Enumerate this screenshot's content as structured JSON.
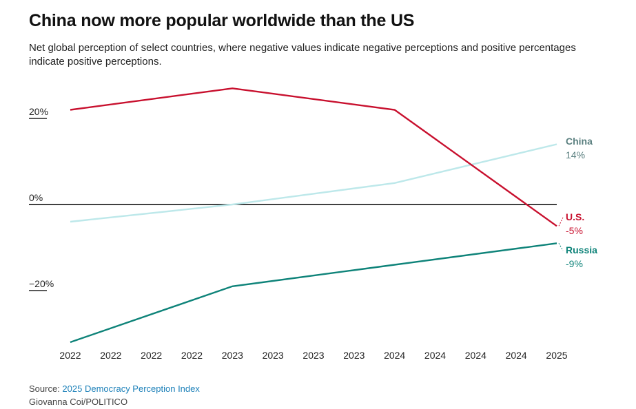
{
  "header": {
    "title": "China now more popular worldwide than the US",
    "subtitle": "Net global perception of select countries, where negative values indicate negative perceptions and positive percentages indicate positive perceptions."
  },
  "footer": {
    "source_prefix": "Source: ",
    "source_link": "2025 Democracy Perception Index",
    "credit": "Giovanna Coi/POLITICO"
  },
  "colors": {
    "us": "#c8102e",
    "china": "#bde8ea",
    "china_label": "#5a7f7f",
    "russia": "#0e8379",
    "zero_line": "#000000"
  },
  "chart_data": {
    "type": "line",
    "title": "China now more popular worldwide than the US",
    "xlabel": "",
    "ylabel": "",
    "x_ticks": [
      "2022",
      "2022",
      "2022",
      "2022",
      "2023",
      "2023",
      "2023",
      "2023",
      "2024",
      "2024",
      "2024",
      "2024",
      "2025"
    ],
    "y_ticks": [
      {
        "value": 20,
        "label": "20%"
      },
      {
        "value": 0,
        "label": "0%"
      },
      {
        "value": -20,
        "label": "−20%"
      }
    ],
    "ylim": [
      -32,
      28
    ],
    "xlim": [
      2022,
      2025
    ],
    "grid": false,
    "series": [
      {
        "key": "us",
        "name": "U.S.",
        "end_label": "-5%",
        "x": [
          2022,
          2023,
          2024,
          2025
        ],
        "values": [
          22,
          27,
          22,
          -5
        ]
      },
      {
        "key": "china",
        "name": "China",
        "end_label": "14%",
        "x": [
          2022,
          2023,
          2024,
          2025
        ],
        "values": [
          -4,
          0,
          5,
          14
        ]
      },
      {
        "key": "russia",
        "name": "Russia",
        "end_label": "-9%",
        "x": [
          2022,
          2023,
          2024,
          2025
        ],
        "values": [
          -32,
          -19,
          -14,
          -9
        ]
      }
    ]
  }
}
